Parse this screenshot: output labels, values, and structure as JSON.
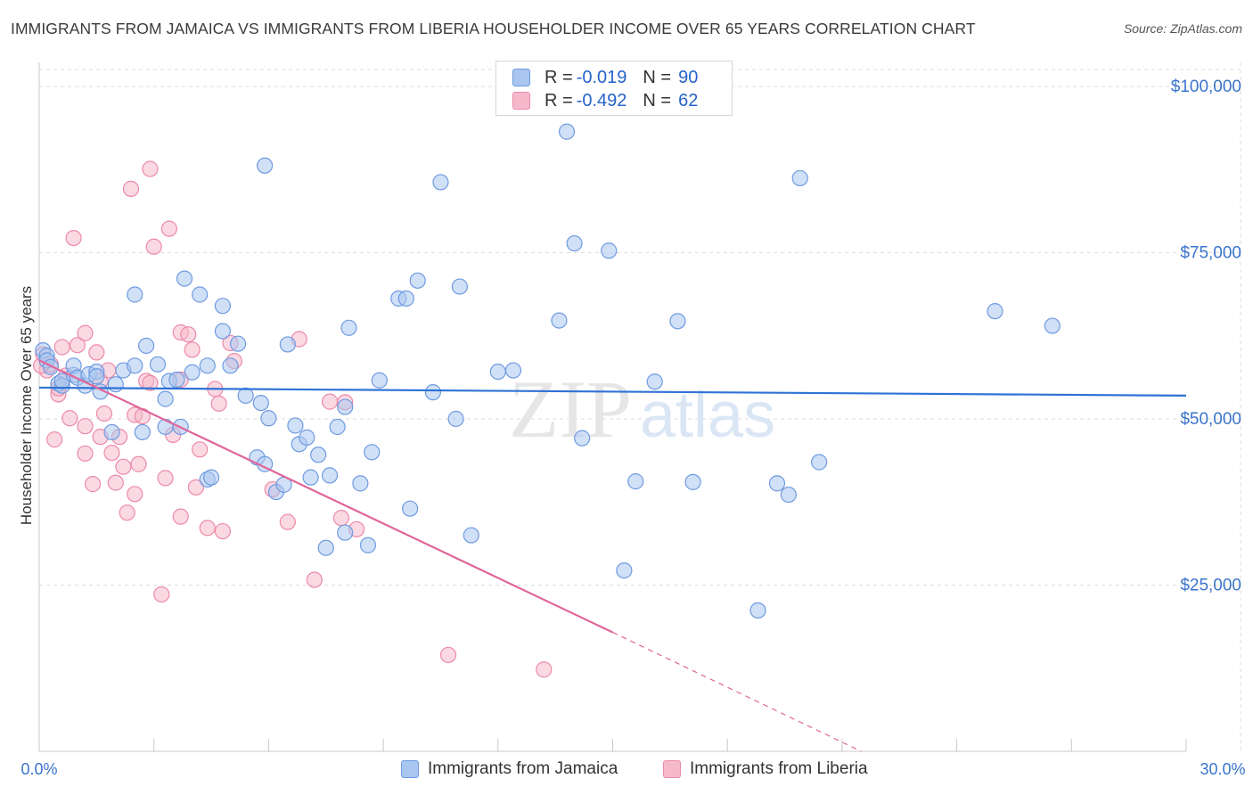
{
  "header": {
    "title": "IMMIGRANTS FROM JAMAICA VS IMMIGRANTS FROM LIBERIA HOUSEHOLDER INCOME OVER 65 YEARS CORRELATION CHART",
    "source": "Source: ZipAtlas.com"
  },
  "legend": {
    "jamaica": {
      "r_label": "R =",
      "r_value": "-0.019",
      "n_label": "N =",
      "n_value": "90"
    },
    "liberia": {
      "r_label": "R =",
      "r_value": "-0.492",
      "n_label": "N =",
      "n_value": "62"
    }
  },
  "bottom_legend": {
    "jamaica": "Immigrants from Jamaica",
    "liberia": "Immigrants from Liberia"
  },
  "watermark": {
    "zip": "ZIP",
    "atlas": "atlas"
  },
  "colors": {
    "jamaica_fill": "#a9c6f0",
    "jamaica_stroke": "#6f9be0",
    "jamaica_line": "#2f72d6",
    "liberia_fill": "#f6b9cc",
    "liberia_stroke": "#ec8aa8",
    "liberia_line": "#e0669a",
    "axis_text": "#3a74cc",
    "grid": "#dddddd"
  },
  "chart_data": {
    "type": "scatter",
    "title": "IMMIGRANTS FROM JAMAICA VS IMMIGRANTS FROM LIBERIA HOUSEHOLDER INCOME OVER 65 YEARS CORRELATION CHART",
    "xlabel": "",
    "ylabel": "Householder Income Over 65 years",
    "xlim": [
      0,
      30
    ],
    "ylim": [
      0,
      102000
    ],
    "x_tick_labels": [
      "0.0%",
      "30.0%"
    ],
    "y_ticks": [
      {
        "value": 25000,
        "label": "$25,000"
      },
      {
        "value": 50000,
        "label": "$50,000"
      },
      {
        "value": 75000,
        "label": "$75,000"
      },
      {
        "value": 100000,
        "label": "$100,000"
      }
    ],
    "series": [
      {
        "name": "Immigrants from Jamaica",
        "trend": {
          "x_start": 0,
          "y_start": 54700,
          "x_end": 30,
          "y_end": 53500
        },
        "points": [
          [
            0.1,
            60300
          ],
          [
            0.2,
            59500
          ],
          [
            0.2,
            58800
          ],
          [
            0.3,
            57800
          ],
          [
            0.5,
            55300
          ],
          [
            0.6,
            55000
          ],
          [
            0.6,
            55700
          ],
          [
            0.9,
            56600
          ],
          [
            0.9,
            58000
          ],
          [
            1.0,
            56200
          ],
          [
            1.2,
            55000
          ],
          [
            1.3,
            56700
          ],
          [
            1.5,
            57100
          ],
          [
            1.5,
            56400
          ],
          [
            1.6,
            54100
          ],
          [
            1.9,
            48000
          ],
          [
            2.0,
            55200
          ],
          [
            2.2,
            57300
          ],
          [
            2.5,
            58000
          ],
          [
            2.5,
            68700
          ],
          [
            2.7,
            48000
          ],
          [
            2.8,
            61000
          ],
          [
            3.1,
            58200
          ],
          [
            3.3,
            48800
          ],
          [
            3.3,
            53000
          ],
          [
            3.4,
            55700
          ],
          [
            3.6,
            55900
          ],
          [
            3.7,
            48800
          ],
          [
            3.8,
            71100
          ],
          [
            4.0,
            57000
          ],
          [
            4.2,
            68700
          ],
          [
            4.4,
            58000
          ],
          [
            4.4,
            40900
          ],
          [
            4.5,
            41200
          ],
          [
            4.8,
            67000
          ],
          [
            4.8,
            63200
          ],
          [
            5.0,
            58000
          ],
          [
            5.2,
            61300
          ],
          [
            5.4,
            53500
          ],
          [
            5.7,
            44200
          ],
          [
            5.8,
            52400
          ],
          [
            5.9,
            43200
          ],
          [
            5.9,
            88100
          ],
          [
            6.0,
            50100
          ],
          [
            6.2,
            39000
          ],
          [
            6.4,
            40100
          ],
          [
            6.5,
            61200
          ],
          [
            6.7,
            49000
          ],
          [
            6.8,
            46200
          ],
          [
            7.0,
            47200
          ],
          [
            7.1,
            41200
          ],
          [
            7.3,
            44600
          ],
          [
            7.5,
            30600
          ],
          [
            7.6,
            41500
          ],
          [
            7.8,
            48800
          ],
          [
            8.0,
            51800
          ],
          [
            8.0,
            32900
          ],
          [
            8.1,
            63700
          ],
          [
            8.4,
            40300
          ],
          [
            8.6,
            31000
          ],
          [
            8.7,
            45000
          ],
          [
            8.9,
            55800
          ],
          [
            9.4,
            68100
          ],
          [
            9.6,
            68100
          ],
          [
            9.7,
            36500
          ],
          [
            9.9,
            70800
          ],
          [
            10.3,
            54000
          ],
          [
            10.5,
            85600
          ],
          [
            10.9,
            50000
          ],
          [
            11.0,
            69900
          ],
          [
            11.3,
            32500
          ],
          [
            12.0,
            57100
          ],
          [
            12.4,
            57300
          ],
          [
            13.6,
            64800
          ],
          [
            13.8,
            93200
          ],
          [
            14.0,
            76400
          ],
          [
            14.2,
            47100
          ],
          [
            14.9,
            75300
          ],
          [
            15.3,
            27200
          ],
          [
            15.6,
            40600
          ],
          [
            16.1,
            55600
          ],
          [
            16.7,
            64700
          ],
          [
            17.1,
            40500
          ],
          [
            18.8,
            21200
          ],
          [
            19.3,
            40300
          ],
          [
            19.6,
            38600
          ],
          [
            19.9,
            86200
          ],
          [
            20.4,
            43500
          ],
          [
            25.0,
            66200
          ],
          [
            26.5,
            64000
          ]
        ]
      },
      {
        "name": "Immigrants from Liberia",
        "trend": {
          "x_start": 0,
          "y_start": 58800,
          "x_end": 15,
          "y_end": 17900,
          "dash_x_end": 21.5,
          "dash_y_end": 0
        },
        "points": [
          [
            0.1,
            59700
          ],
          [
            0.2,
            57300
          ],
          [
            0.3,
            58200
          ],
          [
            0.4,
            46900
          ],
          [
            0.5,
            53700
          ],
          [
            0.5,
            54600
          ],
          [
            0.6,
            60800
          ],
          [
            0.7,
            56500
          ],
          [
            0.8,
            50100
          ],
          [
            0.9,
            77200
          ],
          [
            1.0,
            61100
          ],
          [
            1.2,
            62900
          ],
          [
            1.2,
            44800
          ],
          [
            1.2,
            48900
          ],
          [
            1.4,
            40200
          ],
          [
            1.5,
            60000
          ],
          [
            1.6,
            47300
          ],
          [
            1.6,
            55700
          ],
          [
            1.7,
            50800
          ],
          [
            1.8,
            57300
          ],
          [
            1.9,
            44900
          ],
          [
            2.0,
            40400
          ],
          [
            2.1,
            47300
          ],
          [
            2.2,
            42800
          ],
          [
            2.3,
            35900
          ],
          [
            2.4,
            84600
          ],
          [
            2.5,
            50600
          ],
          [
            2.5,
            38700
          ],
          [
            2.6,
            43200
          ],
          [
            2.7,
            50400
          ],
          [
            2.8,
            55700
          ],
          [
            2.9,
            55400
          ],
          [
            2.9,
            87600
          ],
          [
            3.0,
            75900
          ],
          [
            3.2,
            23600
          ],
          [
            3.3,
            41100
          ],
          [
            3.4,
            78600
          ],
          [
            3.5,
            47600
          ],
          [
            3.7,
            63000
          ],
          [
            3.7,
            35300
          ],
          [
            3.7,
            55900
          ],
          [
            3.9,
            62700
          ],
          [
            4.0,
            60400
          ],
          [
            4.1,
            39700
          ],
          [
            4.2,
            45400
          ],
          [
            4.4,
            33600
          ],
          [
            4.6,
            54500
          ],
          [
            4.7,
            52300
          ],
          [
            4.8,
            33100
          ],
          [
            5.0,
            61400
          ],
          [
            5.1,
            58700
          ],
          [
            6.1,
            39400
          ],
          [
            6.5,
            34500
          ],
          [
            6.8,
            62000
          ],
          [
            7.2,
            25800
          ],
          [
            7.6,
            52600
          ],
          [
            7.9,
            35100
          ],
          [
            8.0,
            52500
          ],
          [
            8.3,
            33400
          ],
          [
            10.7,
            14500
          ],
          [
            13.2,
            12300
          ],
          [
            0.05,
            58000
          ]
        ]
      }
    ]
  }
}
